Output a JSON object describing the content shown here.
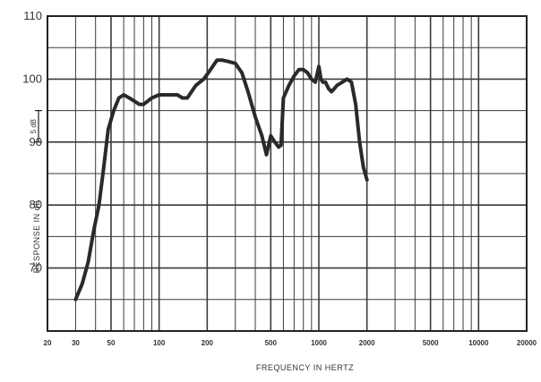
{
  "chart_data": {
    "type": "line",
    "xlabel": "FREQUENCY IN HERTZ",
    "ylabel": "RESPONSE IN dB",
    "x_scale": "log",
    "xlim": [
      20,
      20000
    ],
    "ylim": [
      60,
      110
    ],
    "x_ticks": [
      20,
      30,
      50,
      100,
      200,
      500,
      1000,
      2000,
      5000,
      10000,
      20000
    ],
    "x_tick_labels": [
      "20",
      "30",
      "50",
      "100",
      "200",
      "500",
      "1000",
      "2000",
      "5000",
      "10000",
      "20000"
    ],
    "y_ticks": [
      70,
      80,
      90,
      100,
      110
    ],
    "y_tick_labels": [
      "70",
      "80",
      "90",
      "100",
      "110"
    ],
    "scale_bar_label": "5 dB",
    "grid": true,
    "series": [
      {
        "color": "#2a2a2a",
        "x": [
          30,
          33,
          36,
          39,
          42,
          45,
          48,
          52,
          56,
          60,
          65,
          70,
          75,
          80,
          90,
          100,
          110,
          120,
          130,
          140,
          150,
          170,
          190,
          210,
          230,
          250,
          270,
          300,
          330,
          360,
          400,
          440,
          470,
          480,
          500,
          530,
          560,
          580,
          600,
          650,
          700,
          750,
          800,
          850,
          900,
          950,
          1000,
          1030,
          1060,
          1100,
          1150,
          1200,
          1250,
          1300,
          1400,
          1500,
          1600,
          1700,
          1800,
          1900,
          2000
        ],
        "y": [
          65,
          67.5,
          71,
          76,
          80,
          86,
          92,
          95,
          97,
          97.5,
          97,
          96.5,
          96,
          96,
          97,
          97.5,
          97.5,
          97.5,
          97.5,
          97,
          97,
          99,
          100,
          101.5,
          103,
          103,
          102.8,
          102.5,
          101,
          98,
          94,
          91,
          88,
          89,
          91,
          90,
          89.2,
          89.5,
          97,
          99,
          100.5,
          101.5,
          101.5,
          101,
          100,
          99.5,
          102,
          100,
          99.5,
          99.5,
          98.5,
          98,
          98.5,
          99,
          99.5,
          100,
          99.5,
          96,
          90,
          86,
          84
        ]
      }
    ]
  }
}
